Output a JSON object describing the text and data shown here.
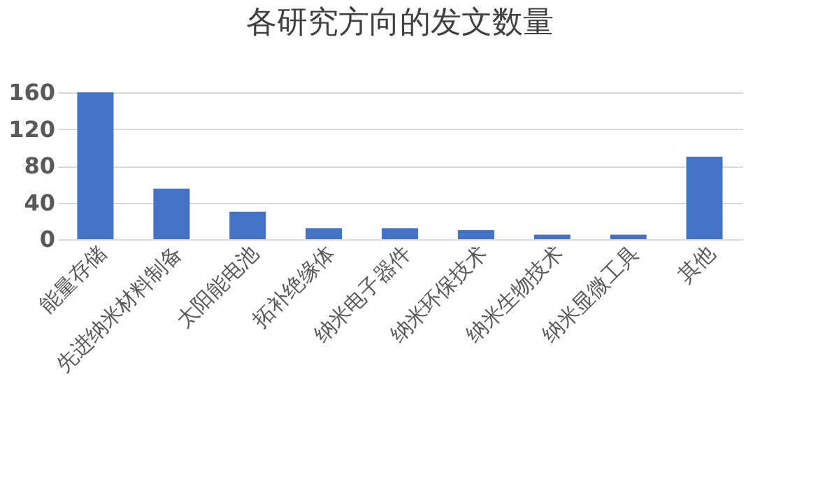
{
  "chart_data": {
    "type": "bar",
    "title": "各研究方向的发文数量",
    "categories": [
      "能量存储",
      "先进纳米材料制备",
      "太阳能电池",
      "拓补绝缘体",
      "纳米电子器件",
      "纳米环保技术",
      "纳米生物技术",
      "纳米显微工具",
      "其他"
    ],
    "values": [
      160,
      55,
      30,
      12,
      12,
      10,
      5,
      5,
      90
    ],
    "color": "#4472c4",
    "ylim": [
      0,
      160
    ],
    "yticks": [
      0,
      40,
      80,
      120,
      160
    ],
    "grid": "y"
  }
}
